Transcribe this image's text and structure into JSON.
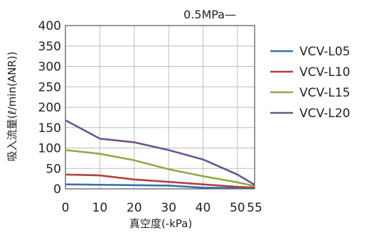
{
  "chart_data": {
    "type": "line",
    "annotation": "0.5MPa—",
    "xlabel": "真空度(-kPa)",
    "ylabel": "吸入流量(ℓ/min(ANR))",
    "x": [
      0,
      10,
      20,
      30,
      40,
      50,
      55
    ],
    "x_ticks": [
      "0",
      "10",
      "20",
      "30",
      "40",
      "50",
      "55"
    ],
    "xlim": [
      0,
      55
    ],
    "y_ticks": [
      "0",
      "50",
      "100",
      "150",
      "200",
      "250",
      "300",
      "350",
      "400"
    ],
    "ylim": [
      0,
      400
    ],
    "grid": true,
    "legend_position": "right",
    "series": [
      {
        "name": "VCV-L05",
        "color": "#3a6fae",
        "values": [
          11,
          10,
          9,
          8,
          3,
          2,
          2
        ]
      },
      {
        "name": "VCV-L10",
        "color": "#b04040",
        "values": [
          35,
          33,
          23,
          17,
          11,
          5,
          3
        ]
      },
      {
        "name": "VCV-L15",
        "color": "#8faa4a",
        "values": [
          95,
          86,
          70,
          48,
          31,
          16,
          7
        ]
      },
      {
        "name": "VCV-L20",
        "color": "#6d548f",
        "values": [
          168,
          123,
          114,
          95,
          72,
          35,
          10
        ]
      }
    ]
  }
}
